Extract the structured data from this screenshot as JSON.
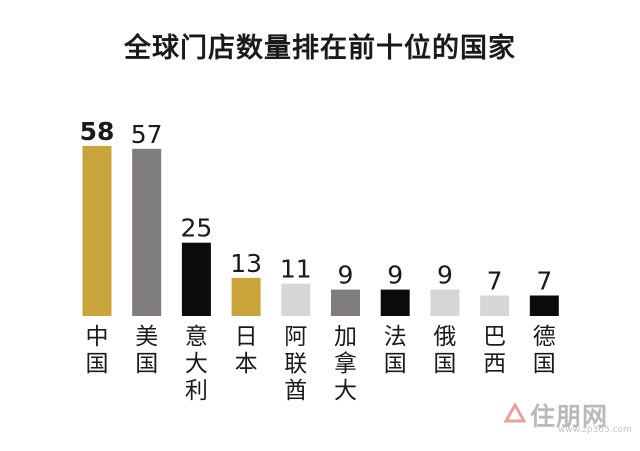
{
  "chart_data": {
    "type": "bar",
    "title": "全球门店数量排在前十位的国家",
    "xlabel": "",
    "ylabel": "",
    "ylim": [
      0,
      60
    ],
    "grid": false,
    "legend": "none",
    "categories": [
      "中国",
      "美国",
      "意大利",
      "日本",
      "阿联酋",
      "加拿大",
      "法国",
      "俄国",
      "巴西",
      "德国"
    ],
    "values": [
      58,
      57,
      25,
      13,
      11,
      9,
      9,
      9,
      7,
      7
    ],
    "bar_colors": [
      "#c9a43a",
      "#807d7e",
      "#0b0b0b",
      "#c9a43a",
      "#d6d6d6",
      "#807d7e",
      "#0b0b0b",
      "#d6d6d6",
      "#d6d6d6",
      "#0b0b0b"
    ],
    "highlight_bold_index": 0
  },
  "watermark": {
    "logo_text": "住朋网",
    "url": "www.zp365.com"
  }
}
